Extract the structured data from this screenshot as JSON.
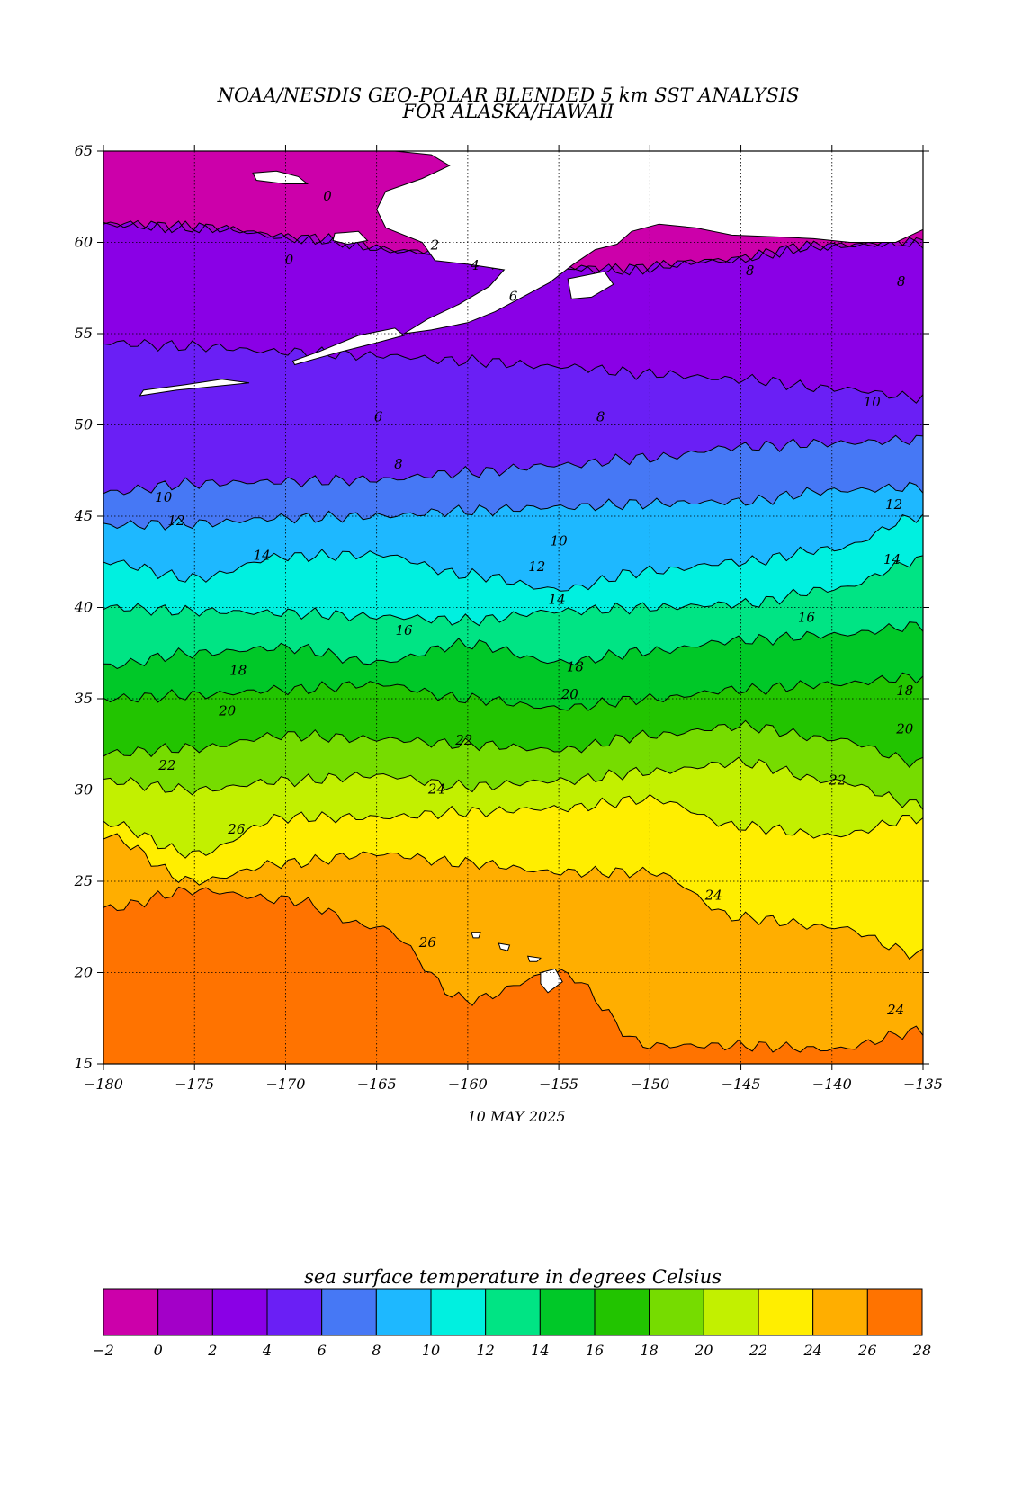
{
  "title": {
    "line1": "NOAA/NESDIS GEO-POLAR BLENDED 5 km SST ANALYSIS",
    "line2": "FOR ALASKA/HAWAII"
  },
  "date": "10 MAY 2025",
  "axes": {
    "lon_range": [
      -180,
      -135
    ],
    "lat_range": [
      15,
      65
    ],
    "lon_ticks": [
      "-180",
      "-175",
      "-170",
      "-165",
      "-160",
      "-155",
      "-150",
      "-145",
      "-140",
      "-135"
    ],
    "lat_ticks": [
      "65",
      "60",
      "55",
      "50",
      "45",
      "40",
      "35",
      "30",
      "25",
      "20",
      "15"
    ],
    "grid": true
  },
  "colorbar": {
    "title": "sea surface temperature in degrees Celsius",
    "ticks": [
      "-2",
      "0",
      "2",
      "4",
      "6",
      "8",
      "10",
      "12",
      "14",
      "16",
      "18",
      "20",
      "22",
      "24",
      "26",
      "28"
    ],
    "colors": [
      "#cc00aa",
      "#a300c8",
      "#8a00e6",
      "#6a1ff5",
      "#4678f5",
      "#1eb8ff",
      "#00f0e0",
      "#00e484",
      "#00c828",
      "#22c400",
      "#76dc00",
      "#c2f000",
      "#ffee00",
      "#ffae00",
      "#ff7300"
    ]
  },
  "map_data": {
    "boundaries": [
      {
        "level": 0,
        "lat": [
          61.0,
          60.8,
          60.2,
          59.5,
          58.8,
          58.5,
          59.0,
          59.8,
          60.0
        ]
      },
      {
        "level": 2,
        "lat": [
          61.0,
          60.8,
          60.2,
          59.5,
          58.8,
          58.5,
          59.0,
          59.8,
          60.0
        ]
      },
      {
        "level": 4,
        "lat": [
          54.5,
          54.3,
          54.0,
          53.8,
          53.5,
          53.2,
          52.8,
          52.5,
          52.0,
          51.5
        ]
      },
      {
        "level": 6,
        "lat": [
          46.3,
          46.8,
          46.9,
          47.0,
          47.4,
          47.8,
          48.2,
          48.8,
          49.0,
          49.2
        ]
      },
      {
        "level": 8,
        "lat": [
          44.5,
          44.6,
          44.9,
          45.0,
          45.3,
          45.5,
          45.7,
          45.8,
          46.4,
          46.6
        ]
      },
      {
        "level": 10,
        "lat": [
          42.5,
          41.6,
          42.8,
          42.9,
          41.8,
          41.0,
          42.0,
          42.5,
          43.2,
          45.0
        ]
      },
      {
        "level": 12,
        "lat": [
          40.0,
          39.8,
          39.7,
          39.5,
          39.3,
          39.8,
          40.0,
          40.2,
          41.0,
          42.6
        ]
      },
      {
        "level": 14,
        "lat": [
          36.8,
          37.5,
          37.8,
          37.0,
          38.0,
          37.0,
          37.6,
          38.2,
          38.5,
          39.0
        ]
      },
      {
        "level": 16,
        "lat": [
          35.0,
          35.2,
          35.5,
          35.8,
          35.0,
          34.5,
          35.0,
          35.5,
          35.8,
          36.2
        ]
      },
      {
        "level": 18,
        "lat": [
          32.0,
          32.3,
          33.0,
          32.8,
          32.5,
          32.2,
          33.0,
          33.5,
          32.8,
          31.5
        ]
      },
      {
        "level": 20,
        "lat": [
          30.5,
          30.0,
          30.5,
          30.8,
          30.2,
          30.5,
          31.0,
          31.5,
          30.5,
          29.2
        ]
      },
      {
        "level": 22,
        "lat": [
          28.2,
          26.5,
          28.5,
          28.5,
          28.8,
          29.0,
          29.5,
          28.0,
          27.5,
          28.5
        ]
      },
      {
        "level": 24,
        "lat": [
          27.5,
          25.0,
          26.0,
          26.5,
          26.0,
          25.5,
          25.5,
          23.0,
          22.5,
          21.0
        ]
      },
      {
        "level": 26,
        "lat": [
          23.5,
          24.5,
          24.0,
          22.5,
          18.5,
          20.0,
          16.0,
          16.0,
          15.8,
          16.8
        ]
      }
    ],
    "contour_labels": [
      {
        "text": "0",
        "lon": -167.7,
        "lat": 62.3
      },
      {
        "text": "2",
        "lon": -161.8,
        "lat": 59.6
      },
      {
        "text": "4",
        "lon": -159.6,
        "lat": 58.5
      },
      {
        "text": "0",
        "lon": -169.8,
        "lat": 58.8
      },
      {
        "text": "6",
        "lon": -164.9,
        "lat": 50.2
      },
      {
        "text": "6",
        "lon": -157.5,
        "lat": 56.8
      },
      {
        "text": "8",
        "lon": -144.5,
        "lat": 58.2
      },
      {
        "text": "8",
        "lon": -136.2,
        "lat": 57.6
      },
      {
        "text": "8",
        "lon": -163.8,
        "lat": 47.6
      },
      {
        "text": "8",
        "lon": -152.7,
        "lat": 50.2
      },
      {
        "text": "10",
        "lon": -137.8,
        "lat": 51.0
      },
      {
        "text": "10",
        "lon": -176.7,
        "lat": 45.8
      },
      {
        "text": "10",
        "lon": -155.0,
        "lat": 43.4
      },
      {
        "text": "12",
        "lon": -176.0,
        "lat": 44.5
      },
      {
        "text": "12",
        "lon": -136.6,
        "lat": 45.4
      },
      {
        "text": "12",
        "lon": -156.2,
        "lat": 42.0
      },
      {
        "text": "14",
        "lon": -171.3,
        "lat": 42.6
      },
      {
        "text": "14",
        "lon": -136.7,
        "lat": 42.4
      },
      {
        "text": "14",
        "lon": -155.1,
        "lat": 40.2
      },
      {
        "text": "16",
        "lon": -163.5,
        "lat": 38.5
      },
      {
        "text": "16",
        "lon": -141.4,
        "lat": 39.2
      },
      {
        "text": "18",
        "lon": -172.6,
        "lat": 36.3
      },
      {
        "text": "18",
        "lon": -154.1,
        "lat": 36.5
      },
      {
        "text": "18",
        "lon": -136.0,
        "lat": 35.2
      },
      {
        "text": "20",
        "lon": -173.2,
        "lat": 34.1
      },
      {
        "text": "20",
        "lon": -154.4,
        "lat": 35.0
      },
      {
        "text": "20",
        "lon": -136.0,
        "lat": 33.1
      },
      {
        "text": "22",
        "lon": -176.5,
        "lat": 31.1
      },
      {
        "text": "22",
        "lon": -160.2,
        "lat": 32.5
      },
      {
        "text": "22",
        "lon": -139.7,
        "lat": 30.3
      },
      {
        "text": "24",
        "lon": -161.7,
        "lat": 29.8
      },
      {
        "text": "24",
        "lon": -146.5,
        "lat": 24.0
      },
      {
        "text": "24",
        "lon": -136.5,
        "lat": 17.7
      },
      {
        "text": "26",
        "lon": -172.7,
        "lat": 27.6
      },
      {
        "text": "26",
        "lon": -162.2,
        "lat": 21.4
      }
    ],
    "land": [
      {
        "name": "alaska-mainland",
        "points": [
          [
            -164.0,
            65
          ],
          [
            -135,
            65
          ],
          [
            -135,
            60.7
          ],
          [
            -136.5,
            60.0
          ],
          [
            -139.0,
            60.0
          ],
          [
            -141.0,
            60.2
          ],
          [
            -143.0,
            60.3
          ],
          [
            -145.5,
            60.4
          ],
          [
            -147.5,
            60.8
          ],
          [
            -149.5,
            61.0
          ],
          [
            -151.0,
            60.6
          ],
          [
            -151.8,
            59.9
          ],
          [
            -153.0,
            59.6
          ],
          [
            -154.2,
            58.8
          ],
          [
            -155.5,
            57.8
          ],
          [
            -157.0,
            57.0
          ],
          [
            -158.5,
            56.2
          ],
          [
            -160.0,
            55.6
          ],
          [
            -162.0,
            55.2
          ],
          [
            -163.5,
            55.0
          ],
          [
            -162.2,
            55.8
          ],
          [
            -160.5,
            56.6
          ],
          [
            -158.8,
            57.6
          ],
          [
            -158.0,
            58.5
          ],
          [
            -160.0,
            58.8
          ],
          [
            -161.8,
            59.0
          ],
          [
            -162.5,
            60.0
          ],
          [
            -164.5,
            60.8
          ],
          [
            -165.0,
            61.8
          ],
          [
            -164.5,
            62.8
          ],
          [
            -162.5,
            63.5
          ],
          [
            -161.0,
            64.2
          ],
          [
            -162.0,
            64.8
          ]
        ]
      },
      {
        "name": "st-lawrence-island",
        "points": [
          [
            -171.8,
            63.8
          ],
          [
            -170.5,
            63.9
          ],
          [
            -169.3,
            63.6
          ],
          [
            -168.8,
            63.2
          ],
          [
            -170.0,
            63.2
          ],
          [
            -171.6,
            63.4
          ]
        ]
      },
      {
        "name": "nunivak-island",
        "points": [
          [
            -167.3,
            60.5
          ],
          [
            -166.0,
            60.6
          ],
          [
            -165.5,
            60.1
          ],
          [
            -166.6,
            59.9
          ],
          [
            -167.4,
            60.1
          ]
        ]
      },
      {
        "name": "kodiak-island",
        "points": [
          [
            -154.5,
            58.0
          ],
          [
            -152.5,
            58.4
          ],
          [
            -152.0,
            57.7
          ],
          [
            -153.2,
            57.0
          ],
          [
            -154.3,
            56.9
          ]
        ]
      },
      {
        "name": "aleutians-east",
        "points": [
          [
            -169.5,
            53.3
          ],
          [
            -167.0,
            54.0
          ],
          [
            -165.0,
            54.5
          ],
          [
            -163.5,
            54.9
          ],
          [
            -164.0,
            55.3
          ],
          [
            -166.0,
            54.9
          ],
          [
            -168.2,
            54.0
          ],
          [
            -169.6,
            53.5
          ]
        ]
      },
      {
        "name": "aleutians-central",
        "points": [
          [
            -178.0,
            51.6
          ],
          [
            -176.0,
            51.9
          ],
          [
            -174.0,
            52.1
          ],
          [
            -172.0,
            52.3
          ],
          [
            -173.5,
            52.5
          ],
          [
            -175.5,
            52.2
          ],
          [
            -177.8,
            51.9
          ]
        ]
      },
      {
        "name": "hawaii-big-island",
        "points": [
          [
            -156.0,
            20.0
          ],
          [
            -155.2,
            20.2
          ],
          [
            -154.8,
            19.5
          ],
          [
            -155.6,
            18.9
          ],
          [
            -156.0,
            19.4
          ]
        ]
      },
      {
        "name": "maui",
        "points": [
          [
            -156.7,
            20.9
          ],
          [
            -156.0,
            20.8
          ],
          [
            -156.2,
            20.6
          ],
          [
            -156.6,
            20.6
          ]
        ]
      },
      {
        "name": "oahu",
        "points": [
          [
            -158.3,
            21.6
          ],
          [
            -157.7,
            21.5
          ],
          [
            -157.8,
            21.2
          ],
          [
            -158.2,
            21.3
          ]
        ]
      },
      {
        "name": "kauai",
        "points": [
          [
            -159.8,
            22.2
          ],
          [
            -159.3,
            22.2
          ],
          [
            -159.4,
            21.9
          ],
          [
            -159.7,
            21.9
          ]
        ]
      }
    ]
  }
}
